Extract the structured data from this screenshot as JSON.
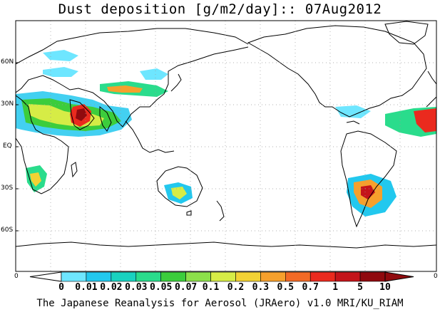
{
  "title": "Dust deposition [g/m2/day]:: 07Aug2012",
  "lat_labels": [
    "60N",
    "30N",
    "EQ",
    "30S",
    "60S"
  ],
  "axis_end_left": "0",
  "axis_end_right": "0",
  "colorbar": {
    "labels": [
      "0",
      "0.01",
      "0.02",
      "0.03",
      "0.05",
      "0.07",
      "0.1",
      "0.2",
      "0.3",
      "0.5",
      "0.7",
      "1",
      "5",
      "10"
    ],
    "colors": [
      "#ffffff",
      "#6ee6ff",
      "#22c8ee",
      "#19d2c0",
      "#2adc8c",
      "#3ccd3c",
      "#8ce04a",
      "#d6ec46",
      "#f2d234",
      "#f6a02c",
      "#f26a26",
      "#ea2a1e",
      "#c4141a",
      "#900a0e"
    ]
  },
  "credit": "The Japanese Reanalysis for Aerosol (JRAero) v1.0 MRI/KU_RIAM"
}
